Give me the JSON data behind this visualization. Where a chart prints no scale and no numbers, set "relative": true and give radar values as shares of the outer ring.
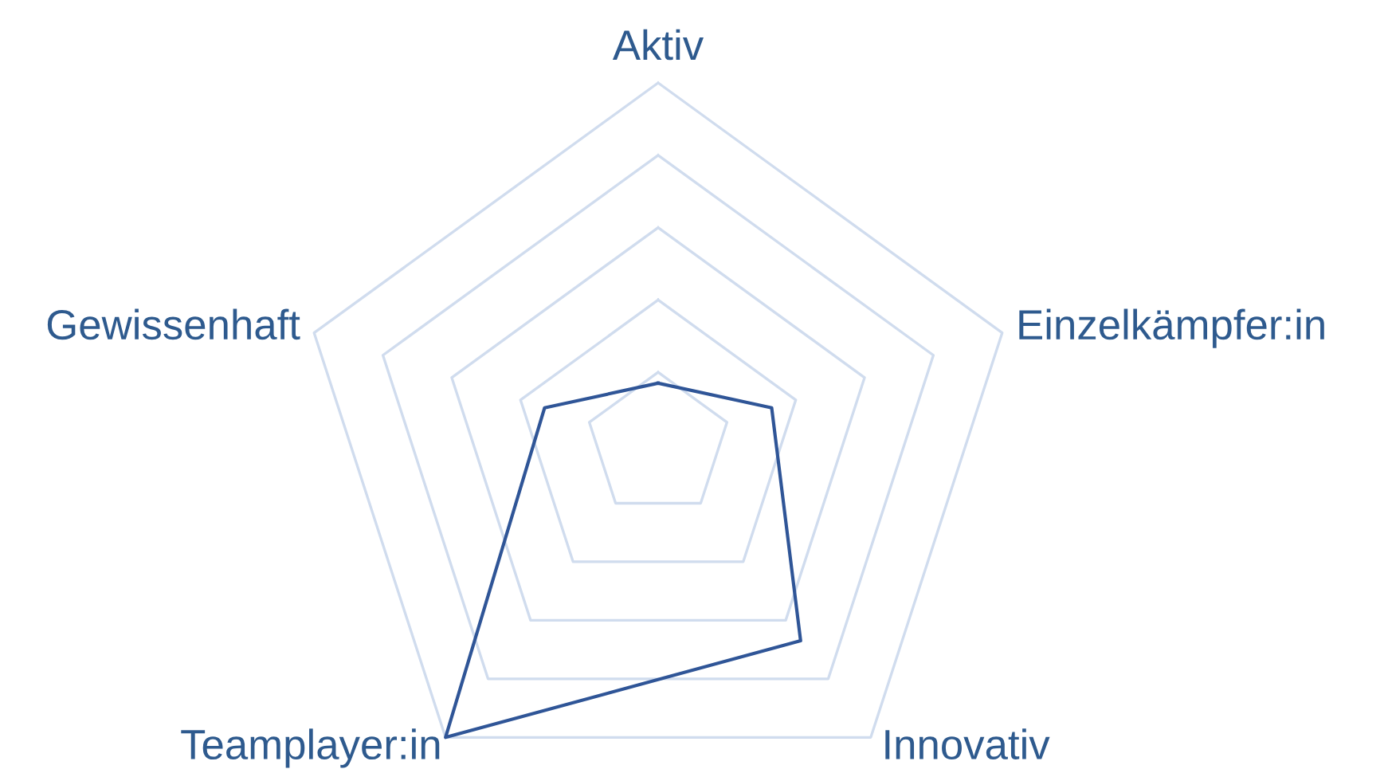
{
  "chart_data": {
    "type": "radar",
    "relative": true,
    "grid": true,
    "legend": false,
    "marker": "none",
    "line_style": "solid",
    "categories": [
      "Aktiv",
      "Einzelkämpfer:in",
      "Innovativ",
      "Teamplayer:in",
      "Gewissenhaft"
    ],
    "series": [
      {
        "color": "#2f5597",
        "values": [
          0.17,
          0.33,
          0.67,
          1,
          0.33
        ]
      }
    ]
  }
}
